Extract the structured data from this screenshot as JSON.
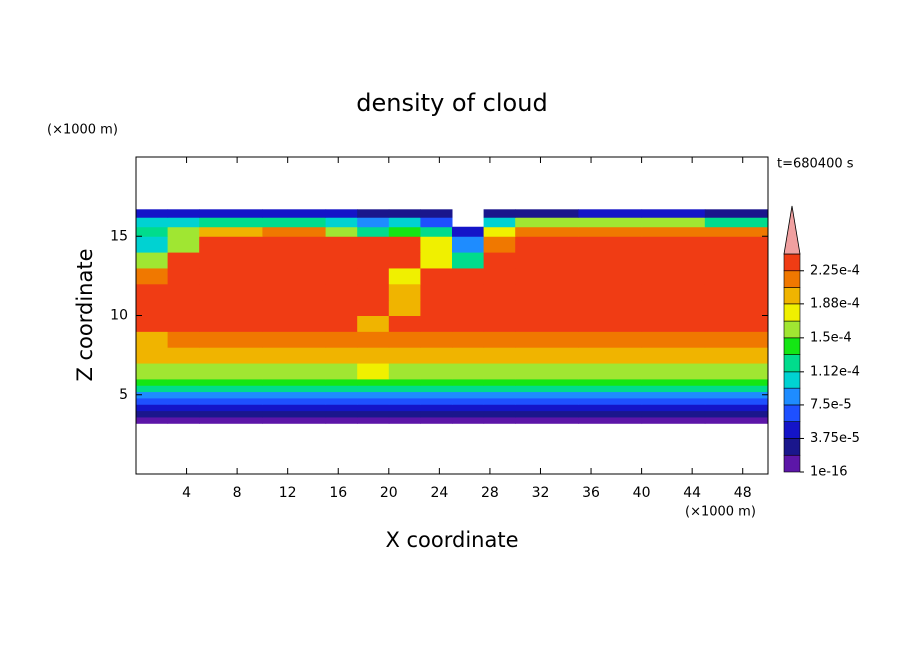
{
  "chart_data": {
    "type": "contour",
    "title": "density of cloud",
    "x_label": "X coordinate",
    "y_label": "Z coordinate",
    "x_unit": "(×1000 m)",
    "y_unit": "(×1000 m)",
    "annotation": "t=680400 s",
    "xlim": [
      0,
      50
    ],
    "ylim": [
      0,
      20
    ],
    "xticks": [
      4,
      8,
      12,
      16,
      20,
      24,
      28,
      32,
      36,
      40,
      44,
      48
    ],
    "yticks": [
      5,
      10,
      15
    ],
    "x_edges": [
      0,
      2.5,
      5,
      10,
      15,
      17.5,
      20,
      22.5,
      25,
      27.5,
      30,
      35,
      40,
      45,
      50
    ],
    "y_edges": [
      3.2,
      3.6,
      4.0,
      4.4,
      4.8,
      5.2,
      5.6,
      6.0,
      7,
      8,
      9,
      10,
      11,
      12,
      13,
      14,
      15,
      15.6,
      16.2,
      16.7
    ],
    "z": [
      [
        1e-05,
        1e-05,
        1e-05,
        1e-05,
        1e-05,
        1e-05,
        1e-05,
        1e-05,
        1e-05,
        1e-05,
        1e-05,
        1e-05,
        1e-05,
        1e-05
      ],
      [
        3e-05,
        3e-05,
        3e-05,
        3e-05,
        3e-05,
        3e-05,
        3e-05,
        3e-05,
        3e-05,
        3e-05,
        3e-05,
        3e-05,
        3e-05,
        3e-05
      ],
      [
        5e-05,
        5e-05,
        5e-05,
        5e-05,
        5e-05,
        5e-05,
        5e-05,
        5e-05,
        5e-05,
        5e-05,
        5e-05,
        5e-05,
        5e-05,
        5e-05
      ],
      [
        7e-05,
        7e-05,
        7e-05,
        7e-05,
        7e-05,
        7e-05,
        7e-05,
        7e-05,
        7e-05,
        7e-05,
        7e-05,
        7e-05,
        7e-05,
        7e-05
      ],
      [
        9e-05,
        9e-05,
        9e-05,
        9e-05,
        9e-05,
        9e-05,
        9e-05,
        9e-05,
        9e-05,
        9e-05,
        9e-05,
        9e-05,
        9e-05,
        9e-05
      ],
      [
        0.00012,
        0.00012,
        0.00012,
        0.00012,
        0.00012,
        0.00012,
        0.00012,
        0.00012,
        0.00012,
        0.00012,
        0.00012,
        0.00012,
        0.00012,
        0.00012
      ],
      [
        0.00014,
        0.00014,
        0.00014,
        0.00014,
        0.00014,
        0.00014,
        0.00014,
        0.00014,
        0.00014,
        0.00014,
        0.00014,
        0.00014,
        0.00014,
        0.00014
      ],
      [
        0.00016,
        0.00016,
        0.00016,
        0.00016,
        0.00016,
        0.00018,
        0.00016,
        0.00016,
        0.00016,
        0.00016,
        0.00016,
        0.00016,
        0.00016,
        0.00016
      ],
      [
        0.00019,
        0.00019,
        0.00019,
        0.00019,
        0.00019,
        0.00019,
        0.00019,
        0.00019,
        0.00019,
        0.00019,
        0.00019,
        0.00019,
        0.00019,
        0.00019
      ],
      [
        0.0002,
        0.000215,
        0.000215,
        0.000215,
        0.000215,
        0.000215,
        0.000215,
        0.000215,
        0.000215,
        0.000215,
        0.000215,
        0.000215,
        0.000215,
        0.000215
      ],
      [
        0.00023,
        0.00023,
        0.00023,
        0.00023,
        0.00023,
        0.00019,
        0.00023,
        0.00023,
        0.00023,
        0.00023,
        0.00023,
        0.00023,
        0.00023,
        0.00023
      ],
      [
        0.00023,
        0.00023,
        0.00023,
        0.00023,
        0.00023,
        0.00023,
        0.00019,
        0.00023,
        0.00023,
        0.00023,
        0.00023,
        0.00023,
        0.00023,
        0.00023
      ],
      [
        0.00023,
        0.00023,
        0.00023,
        0.00023,
        0.00023,
        0.00023,
        0.00019,
        0.00023,
        0.00023,
        0.00023,
        0.00023,
        0.00023,
        0.00023,
        0.00023
      ],
      [
        0.00021,
        0.00023,
        0.00023,
        0.00023,
        0.00023,
        0.00023,
        0.00018,
        0.00023,
        0.00023,
        0.00023,
        0.00023,
        0.00023,
        0.00023,
        0.00023
      ],
      [
        0.00015,
        0.00023,
        0.00023,
        0.00023,
        0.00023,
        0.00023,
        0.00023,
        0.00018,
        0.00012,
        0.00023,
        0.00023,
        0.00023,
        0.00023,
        0.00023
      ],
      [
        0.0001,
        0.00016,
        0.00023,
        0.00023,
        0.00023,
        0.00023,
        0.00023,
        0.00017,
        8e-05,
        0.00021,
        0.00023,
        0.00023,
        0.00023,
        0.00023
      ],
      [
        0.00013,
        0.00015,
        0.00019,
        0.00021,
        0.00016,
        0.00012,
        0.00014,
        0.00012,
        4e-05,
        0.00018,
        0.00021,
        0.00022,
        0.00022,
        0.00021
      ],
      [
        0.0001,
        0.00011,
        0.00012,
        0.00013,
        0.00011,
        9e-05,
        0.0001,
        6e-05,
        null,
        0.0001,
        0.00015,
        0.00016,
        0.00015,
        0.00013
      ],
      [
        4e-05,
        5e-05,
        5e-05,
        5e-05,
        4e-05,
        3e-05,
        3e-05,
        2e-05,
        null,
        2e-05,
        3e-05,
        5e-05,
        4e-05,
        3e-05
      ]
    ],
    "colorbar": {
      "levels": [
        1e-16,
        1.875e-05,
        3.75e-05,
        5.625e-05,
        7.5e-05,
        9.375e-05,
        0.000112,
        0.00013125,
        0.00015,
        0.00016875,
        0.000188,
        0.00020625,
        0.000225,
        0.00024375
      ],
      "colors": [
        "#5c16a8",
        "#1a168c",
        "#1414c8",
        "#1e50ff",
        "#1e8cff",
        "#00d2d2",
        "#00dc8c",
        "#14e614",
        "#a0e632",
        "#f0f000",
        "#f0b400",
        "#f07800",
        "#f03c14"
      ],
      "extend_color": "#f0a0a0",
      "ticks": [
        {
          "value": 1e-16,
          "label": "1e-16"
        },
        {
          "value": 3.75e-05,
          "label": "3.75e-5"
        },
        {
          "value": 7.5e-05,
          "label": "7.5e-5"
        },
        {
          "value": 0.000112,
          "label": "1.12e-4"
        },
        {
          "value": 0.00015,
          "label": "1.5e-4"
        },
        {
          "value": 0.000188,
          "label": "1.88e-4"
        },
        {
          "value": 0.000225,
          "label": "2.25e-4"
        }
      ]
    }
  }
}
